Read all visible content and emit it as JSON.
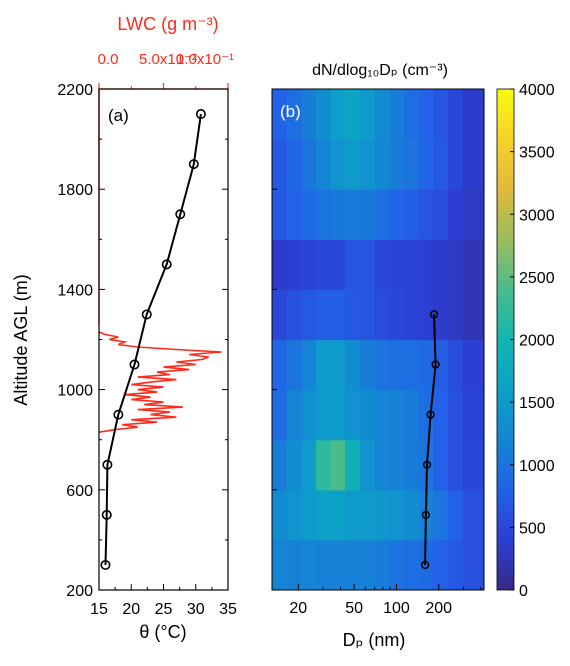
{
  "chart_data": [
    {
      "panel_label": "(a)",
      "type": "line",
      "top_axis_label": "LWC (g m⁻³)",
      "top_axis_ticks": [
        "0.0",
        "5.0x10⁻²",
        "1.0x10⁻¹"
      ],
      "top_axis_color": "#ff2a1a",
      "xlabel": "θ (°C)",
      "ylabel": "Altitude AGL (m)",
      "xlim": [
        15,
        35
      ],
      "ylim": [
        200,
        2200
      ],
      "x_ticks": [
        15,
        20,
        25,
        30,
        35
      ],
      "y_ticks": [
        200,
        600,
        1000,
        1400,
        1800,
        2200
      ],
      "series": [
        {
          "color": "#000000",
          "marker": "open-circle",
          "points": [
            {
              "x": 16.0,
              "y": 300
            },
            {
              "x": 16.2,
              "y": 500
            },
            {
              "x": 16.3,
              "y": 700
            },
            {
              "x": 18.0,
              "y": 900
            },
            {
              "x": 20.5,
              "y": 1100
            },
            {
              "x": 22.4,
              "y": 1300
            },
            {
              "x": 25.5,
              "y": 1500
            },
            {
              "x": 27.6,
              "y": 1700
            },
            {
              "x": 29.7,
              "y": 1900
            },
            {
              "x": 30.8,
              "y": 2100
            }
          ]
        }
      ],
      "lwc_profile": {
        "color": "#ff2a1a",
        "xlim": [
          0.0,
          0.1
        ],
        "points": [
          {
            "y": 830,
            "x": 0.0
          },
          {
            "y": 840,
            "x": 0.012
          },
          {
            "y": 850,
            "x": 0.03
          },
          {
            "y": 860,
            "x": 0.018
          },
          {
            "y": 870,
            "x": 0.045
          },
          {
            "y": 880,
            "x": 0.025
          },
          {
            "y": 890,
            "x": 0.06
          },
          {
            "y": 900,
            "x": 0.04
          },
          {
            "y": 910,
            "x": 0.055
          },
          {
            "y": 920,
            "x": 0.03
          },
          {
            "y": 930,
            "x": 0.065
          },
          {
            "y": 940,
            "x": 0.035
          },
          {
            "y": 950,
            "x": 0.05
          },
          {
            "y": 960,
            "x": 0.025
          },
          {
            "y": 970,
            "x": 0.04
          },
          {
            "y": 980,
            "x": 0.02
          },
          {
            "y": 990,
            "x": 0.045
          },
          {
            "y": 1000,
            "x": 0.03
          },
          {
            "y": 1010,
            "x": 0.05
          },
          {
            "y": 1020,
            "x": 0.025
          },
          {
            "y": 1030,
            "x": 0.04
          },
          {
            "y": 1040,
            "x": 0.06
          },
          {
            "y": 1050,
            "x": 0.03
          },
          {
            "y": 1060,
            "x": 0.055
          },
          {
            "y": 1070,
            "x": 0.045
          },
          {
            "y": 1080,
            "x": 0.07
          },
          {
            "y": 1090,
            "x": 0.05
          },
          {
            "y": 1100,
            "x": 0.075
          },
          {
            "y": 1110,
            "x": 0.06
          },
          {
            "y": 1120,
            "x": 0.08
          },
          {
            "y": 1130,
            "x": 0.085
          },
          {
            "y": 1140,
            "x": 0.07
          },
          {
            "y": 1150,
            "x": 0.095
          },
          {
            "y": 1160,
            "x": 0.06
          },
          {
            "y": 1170,
            "x": 0.03
          },
          {
            "y": 1180,
            "x": 0.015
          },
          {
            "y": 1190,
            "x": 0.02
          },
          {
            "y": 1200,
            "x": 0.008
          },
          {
            "y": 1210,
            "x": 0.015
          },
          {
            "y": 1220,
            "x": 0.005
          },
          {
            "y": 1230,
            "x": 0.0
          }
        ]
      }
    },
    {
      "panel_label": "(b)",
      "type": "heatmap",
      "title": "dN/dlog₁₀Dₚ (cm⁻³)",
      "xlabel": "Dₚ (nm)",
      "x_scale": "log",
      "xlim": [
        13,
        420
      ],
      "x_ticks": [
        20,
        50,
        100,
        200
      ],
      "ylim": [
        200,
        2200
      ],
      "colorbar": {
        "range": [
          0,
          4000
        ],
        "ticks": [
          0,
          500,
          1000,
          1500,
          2000,
          2500,
          3000,
          3500,
          4000
        ],
        "colormap": "parula"
      },
      "size_bins_nm": [
        13,
        16.5,
        21,
        26.7,
        34,
        43,
        55,
        70,
        89,
        113,
        144,
        183,
        233,
        296,
        420
      ],
      "rows": [
        {
          "y_range": [
            200,
            400
          ],
          "values": [
            1200,
            1150,
            1200,
            1150,
            1150,
            1150,
            1150,
            1100,
            1000,
            950,
            900,
            800,
            700,
            600
          ]
        },
        {
          "y_range": [
            400,
            600
          ],
          "values": [
            1300,
            1400,
            1500,
            1600,
            1600,
            1500,
            1500,
            1450,
            1400,
            1300,
            1150,
            1000,
            800,
            600
          ]
        },
        {
          "y_range": [
            600,
            800
          ],
          "values": [
            1100,
            1300,
            1500,
            2200,
            2400,
            1900,
            1400,
            1200,
            1150,
            1100,
            1000,
            800,
            600,
            500
          ]
        },
        {
          "y_range": [
            800,
            1000
          ],
          "values": [
            900,
            1200,
            1350,
            1500,
            1500,
            1400,
            1300,
            1200,
            1150,
            1100,
            950,
            800,
            600,
            450
          ]
        },
        {
          "y_range": [
            1000,
            1200
          ],
          "values": [
            850,
            1000,
            1200,
            1500,
            1500,
            1300,
            1100,
            1000,
            950,
            950,
            900,
            750,
            550,
            400
          ]
        },
        {
          "y_range": [
            1200,
            1400
          ],
          "values": [
            500,
            600,
            700,
            750,
            750,
            700,
            650,
            550,
            500,
            450,
            400,
            350,
            300,
            250
          ]
        },
        {
          "y_range": [
            1400,
            1600
          ],
          "values": [
            350,
            400,
            450,
            500,
            500,
            650,
            650,
            500,
            450,
            450,
            400,
            350,
            300,
            250
          ]
        },
        {
          "y_range": [
            1600,
            1800
          ],
          "values": [
            700,
            800,
            900,
            1000,
            1050,
            1100,
            1050,
            950,
            850,
            750,
            650,
            550,
            400,
            300
          ]
        },
        {
          "y_range": [
            1800,
            2000
          ],
          "values": [
            700,
            850,
            1000,
            1200,
            1400,
            1500,
            1400,
            1250,
            1100,
            1000,
            850,
            700,
            500,
            350
          ]
        },
        {
          "y_range": [
            2000,
            2200
          ],
          "values": [
            800,
            950,
            1100,
            1300,
            1550,
            1650,
            1500,
            1300,
            1100,
            950,
            800,
            650,
            500,
            350
          ]
        }
      ],
      "overlay_series": {
        "color": "#000000",
        "marker": "open-circle",
        "points": [
          {
            "x": 160,
            "y": 300
          },
          {
            "x": 162,
            "y": 500
          },
          {
            "x": 165,
            "y": 700
          },
          {
            "x": 175,
            "y": 900
          },
          {
            "x": 190,
            "y": 1100
          },
          {
            "x": 185,
            "y": 1300
          }
        ]
      }
    }
  ]
}
